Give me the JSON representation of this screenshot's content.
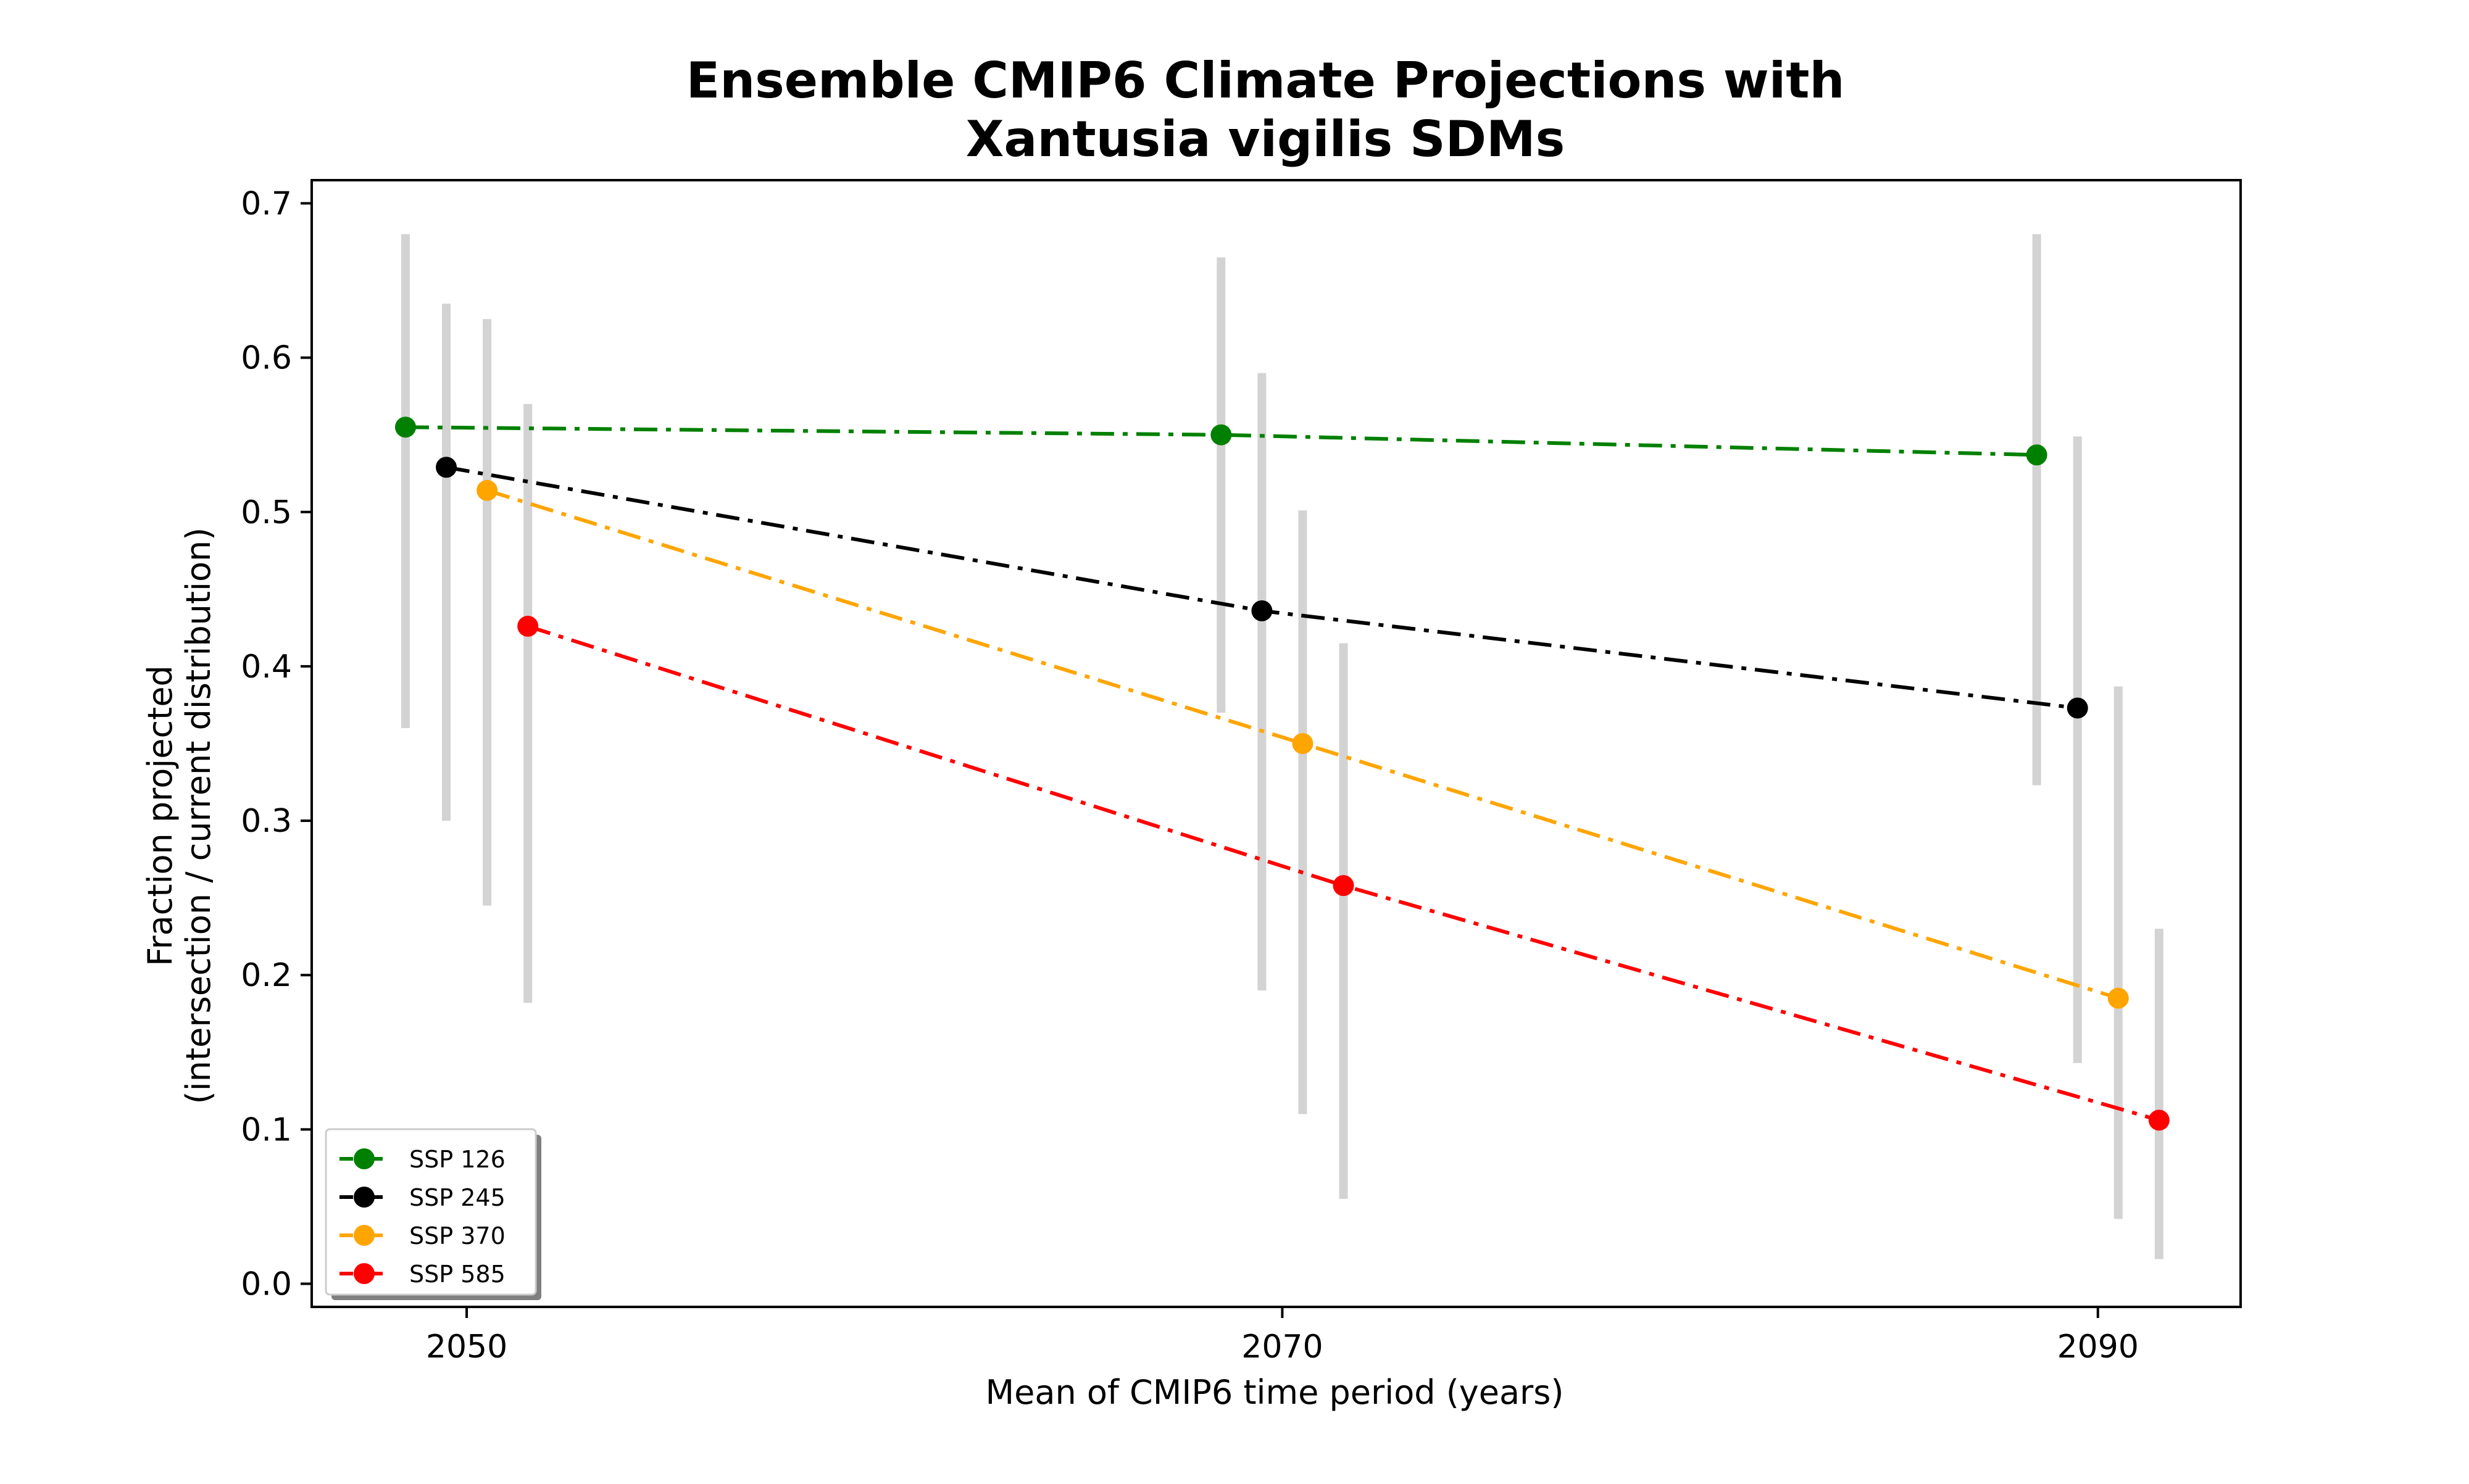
{
  "chart_data": {
    "type": "line",
    "title": [
      "Ensemble CMIP6 Climate Projections with",
      "Xantusia vigilis SDMs"
    ],
    "xlabel": "Mean of CMIP6 time period (years)",
    "ylabel": [
      "Fraction projected",
      "(intersection / current distribution)"
    ],
    "xlim": [
      2046.2,
      2093.5
    ],
    "ylim": [
      -0.015,
      0.715
    ],
    "xticks": [
      2050,
      2070,
      2090
    ],
    "xtick_labels": [
      "2050",
      "2070",
      "2090"
    ],
    "yticks": [
      0.0,
      0.1,
      0.2,
      0.3,
      0.4,
      0.5,
      0.6,
      0.7
    ],
    "ytick_labels": [
      "0.0",
      "0.1",
      "0.2",
      "0.3",
      "0.4",
      "0.5",
      "0.6",
      "0.7"
    ],
    "grid": false,
    "legend_position": "lower-left",
    "line_style": "dash-dot",
    "error_bar_color": "#d3d3d3",
    "series": [
      {
        "name": "SSP 126",
        "color": "#008000",
        "x": [
          2048.5,
          2068.5,
          2088.5
        ],
        "y": [
          0.555,
          0.55,
          0.537
        ],
        "err_low": [
          0.36,
          0.37,
          0.323
        ],
        "err_high": [
          0.68,
          0.665,
          0.68
        ]
      },
      {
        "name": "SSP 245",
        "color": "#000000",
        "x": [
          2049.5,
          2069.5,
          2089.5
        ],
        "y": [
          0.529,
          0.436,
          0.373
        ],
        "err_low": [
          0.3,
          0.19,
          0.143
        ],
        "err_high": [
          0.635,
          0.59,
          0.549
        ]
      },
      {
        "name": "SSP 370",
        "color": "#ffa500",
        "x": [
          2050.5,
          2070.5,
          2090.5
        ],
        "y": [
          0.514,
          0.35,
          0.185
        ],
        "err_low": [
          0.245,
          0.11,
          0.042
        ],
        "err_high": [
          0.625,
          0.501,
          0.387
        ]
      },
      {
        "name": "SSP 585",
        "color": "#ff0000",
        "x": [
          2051.5,
          2071.5,
          2091.5
        ],
        "y": [
          0.426,
          0.258,
          0.106
        ],
        "err_low": [
          0.182,
          0.055,
          0.016
        ],
        "err_high": [
          0.57,
          0.415,
          0.23
        ]
      }
    ]
  }
}
